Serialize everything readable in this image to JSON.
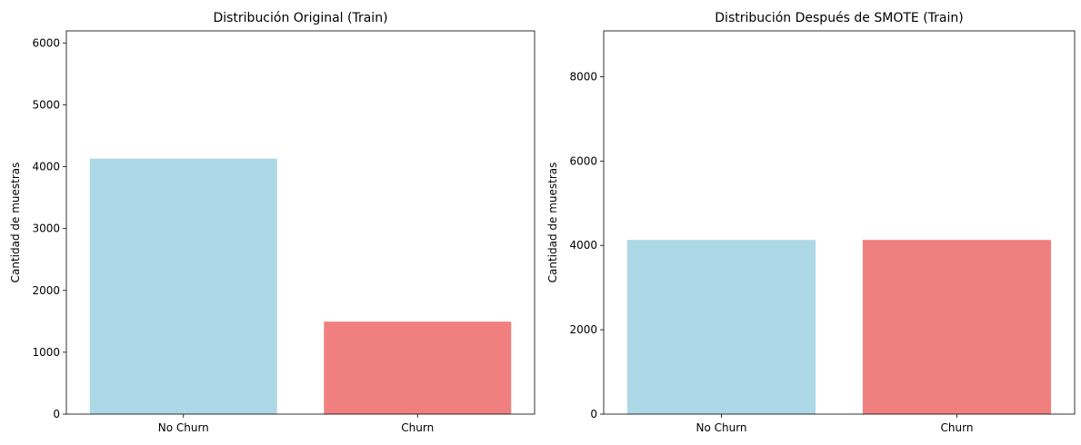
{
  "chart_data": [
    {
      "type": "bar",
      "title": "Distribución Original (Train)",
      "xlabel": "",
      "ylabel": "Cantidad de muestras",
      "categories": [
        "No Churn",
        "Churn"
      ],
      "values": [
        4130,
        1495
      ],
      "colors": [
        "#add8e6",
        "#f08080"
      ],
      "ylim": [
        0,
        6195
      ],
      "yticks": [
        0,
        1000,
        2000,
        3000,
        4000,
        5000,
        6000
      ],
      "grid": false,
      "legend": "none"
    },
    {
      "type": "bar",
      "title": "Distribución Después de SMOTE (Train)",
      "xlabel": "",
      "ylabel": "Cantidad de muestras",
      "categories": [
        "No Churn",
        "Churn"
      ],
      "values": [
        4130,
        4130
      ],
      "colors": [
        "#add8e6",
        "#f08080"
      ],
      "ylim": [
        0,
        9086
      ],
      "yticks": [
        0,
        2000,
        4000,
        6000,
        8000
      ],
      "grid": false,
      "legend": "none"
    }
  ]
}
